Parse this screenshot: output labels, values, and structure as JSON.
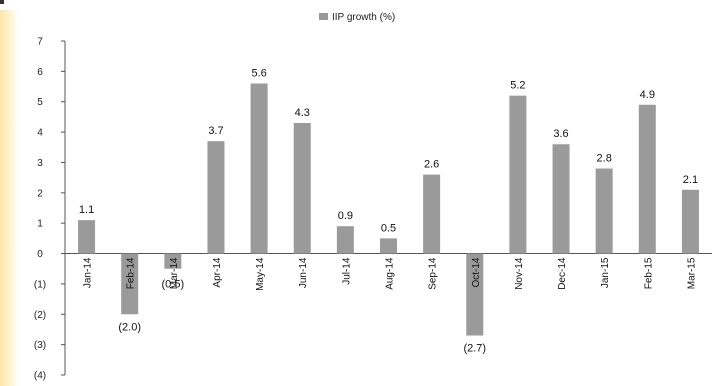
{
  "chart_data": {
    "type": "bar",
    "title": "",
    "xlabel": "",
    "ylabel": "",
    "ylim": [
      -4,
      7
    ],
    "yticks": [
      "7",
      "6",
      "5",
      "4",
      "3",
      "2",
      "1",
      "0",
      "(1)",
      "(2)",
      "(3)",
      "(4)"
    ],
    "ytick_values": [
      7,
      6,
      5,
      4,
      3,
      2,
      1,
      0,
      -1,
      -2,
      -3,
      -4
    ],
    "grid": false,
    "legend_position": "top-center",
    "categories": [
      "Jan-14",
      "Feb-14",
      "Mar-14",
      "Apr-14",
      "May-14",
      "Jun-14",
      "Jul-14",
      "Aug-14",
      "Sep-14",
      "Oct-14",
      "Nov-14",
      "Dec-14",
      "Jan-15",
      "Feb-15",
      "Mar-15"
    ],
    "series": [
      {
        "name": "IIP growth (%)",
        "color": "#9a9a9a",
        "values": [
          1.1,
          -2.0,
          -0.5,
          3.7,
          5.6,
          4.3,
          0.9,
          0.5,
          2.6,
          -2.7,
          5.2,
          3.6,
          2.8,
          4.9,
          2.1
        ],
        "labels": [
          "1.1",
          "(2.0)",
          "(0.5)",
          "3.7",
          "5.6",
          "4.3",
          "0.9",
          "0.5",
          "2.6",
          "(2.7)",
          "5.2",
          "3.6",
          "2.8",
          "4.9",
          "2.1"
        ]
      }
    ]
  }
}
